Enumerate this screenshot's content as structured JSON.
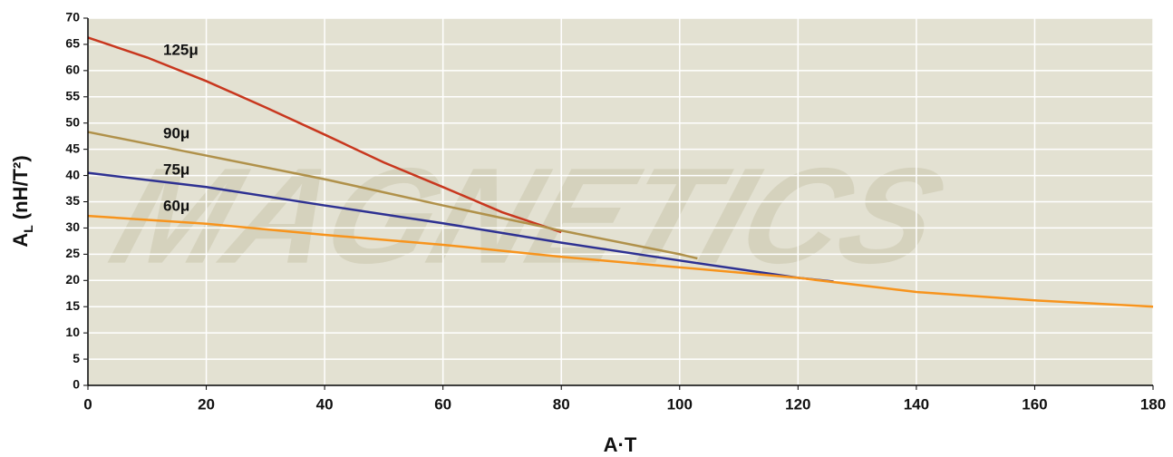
{
  "chart_data": {
    "type": "line",
    "x_label": "A·T",
    "y_label": "A",
    "y_label_sub": "L",
    "y_label_unit": "(nH/T²)",
    "watermark": "MAGNETICS",
    "xlim": [
      0,
      180
    ],
    "xticks": [
      0,
      20,
      40,
      60,
      80,
      100,
      120,
      140,
      160,
      180
    ],
    "ylim": [
      0,
      70
    ],
    "yticks": [
      0,
      5,
      10,
      15,
      20,
      25,
      30,
      35,
      40,
      45,
      50,
      55,
      60,
      65,
      70
    ],
    "grid": true,
    "series": [
      {
        "name": "125μ",
        "color": "#c8371e",
        "x": [
          0,
          10,
          20,
          30,
          40,
          50,
          60,
          70,
          80
        ],
        "values": [
          66.3,
          62.5,
          58,
          53,
          47.8,
          42.5,
          37.8,
          33,
          29.2
        ]
      },
      {
        "name": "90μ",
        "color": "#b0914a",
        "x": [
          0,
          20,
          40,
          60,
          80,
          100,
          103
        ],
        "values": [
          48.3,
          43.8,
          39.3,
          34.3,
          29.5,
          25,
          24.2
        ]
      },
      {
        "name": "75μ",
        "color": "#2e3192",
        "x": [
          0,
          20,
          40,
          60,
          80,
          100,
          120,
          126
        ],
        "values": [
          40.5,
          37.8,
          34.3,
          30.9,
          27.2,
          23.8,
          20.5,
          19.8
        ]
      },
      {
        "name": "60μ",
        "color": "#f7941d",
        "x": [
          0,
          20,
          40,
          60,
          80,
          100,
          120,
          140,
          160,
          180
        ],
        "values": [
          32.3,
          30.8,
          28.7,
          26.8,
          24.5,
          22.5,
          20.5,
          17.8,
          16.2,
          15
        ]
      }
    ]
  }
}
